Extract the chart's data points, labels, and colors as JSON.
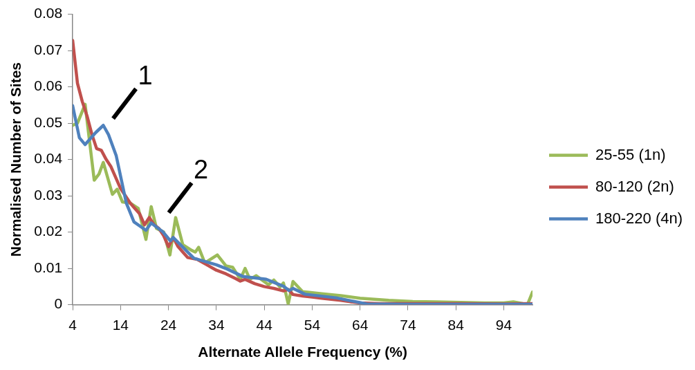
{
  "chart_data": {
    "type": "line",
    "xlabel": "Alternate Allele Frequency (%)",
    "ylabel": "Normalised Number of Sites",
    "xlim": [
      4,
      100
    ],
    "xticks": [
      4,
      14,
      24,
      34,
      44,
      54,
      64,
      74,
      84,
      94
    ],
    "ylim": [
      0,
      0.08
    ],
    "yticks": [
      0,
      0.01,
      0.02,
      0.03,
      0.04,
      0.05,
      0.06,
      0.07,
      0.08
    ],
    "grid": false,
    "legend": "right",
    "marker": "none",
    "line_style": "solid",
    "annotations": [
      "1",
      "2"
    ],
    "series": [
      {
        "name": "25-55 (1n)",
        "color": "#9bbb59",
        "x": [
          4,
          5,
          6.6,
          8.5,
          9.5,
          10.4,
          12.3,
          13.3,
          14.4,
          16,
          17.7,
          19.3,
          20.4,
          21.5,
          23,
          24.3,
          25.5,
          27,
          28.8,
          29.6,
          30.3,
          31.6,
          34.2,
          36,
          37.4,
          39,
          40,
          41,
          42.3,
          44.9,
          46,
          47.3,
          48,
          49,
          50,
          52,
          53.4,
          56,
          60,
          64,
          70,
          75,
          80,
          90,
          94,
          96,
          98,
          99,
          100
        ],
        "values": [
          0.0494,
          0.05,
          0.0552,
          0.0343,
          0.036,
          0.0392,
          0.0304,
          0.0318,
          0.0283,
          0.028,
          0.0265,
          0.018,
          0.027,
          0.021,
          0.02,
          0.0137,
          0.024,
          0.0165,
          0.015,
          0.0145,
          0.0158,
          0.0115,
          0.0137,
          0.0107,
          0.0103,
          0.007,
          0.01,
          0.007,
          0.008,
          0.0055,
          0.0068,
          0.0049,
          0.006,
          0.0002,
          0.0064,
          0.0036,
          0.0034,
          0.003,
          0.0025,
          0.0018,
          0.0012,
          0.0009,
          0.0008,
          0.0005,
          0.0005,
          0.0008,
          0.0003,
          0.0002,
          0.0035
        ]
      },
      {
        "name": "80-120 (2n)",
        "color": "#c0504d",
        "x": [
          4,
          5,
          6,
          7,
          8,
          9,
          10,
          11,
          12,
          13,
          14,
          15,
          16,
          17,
          18,
          19,
          20,
          21,
          22,
          23,
          24,
          25,
          26,
          27,
          28,
          30,
          32,
          34,
          36,
          38,
          39,
          40,
          42,
          44,
          46,
          48,
          49,
          50,
          52,
          54,
          56,
          58,
          60,
          62,
          64,
          68,
          74,
          84,
          94,
          100
        ],
        "values": [
          0.0728,
          0.061,
          0.056,
          0.052,
          0.047,
          0.043,
          0.0425,
          0.04,
          0.038,
          0.035,
          0.032,
          0.03,
          0.028,
          0.0265,
          0.025,
          0.022,
          0.024,
          0.022,
          0.021,
          0.019,
          0.016,
          0.0185,
          0.016,
          0.0145,
          0.013,
          0.0125,
          0.011,
          0.0095,
          0.0085,
          0.0072,
          0.0065,
          0.007,
          0.0058,
          0.005,
          0.0045,
          0.0038,
          0.0042,
          0.0028,
          0.0024,
          0.0021,
          0.0018,
          0.0015,
          0.0012,
          0.0008,
          0.0005,
          0.0003,
          0.0003,
          0.0003,
          0.0002,
          0.0003
        ]
      },
      {
        "name": "180-220 (4n)",
        "color": "#4f81bd",
        "x": [
          4,
          5.4,
          6.6,
          8.8,
          10.4,
          11.5,
          13.1,
          15.2,
          16.8,
          19.3,
          20.4,
          22.8,
          24.4,
          25,
          29.3,
          34,
          36.3,
          39.5,
          44.4,
          48,
          49.2,
          50,
          52.5,
          59,
          65.4,
          74,
          84,
          94,
          100
        ],
        "values": [
          0.0548,
          0.046,
          0.0441,
          0.0474,
          0.0494,
          0.0468,
          0.041,
          0.028,
          0.0228,
          0.0205,
          0.0225,
          0.0201,
          0.0176,
          0.0185,
          0.0128,
          0.011,
          0.0098,
          0.0078,
          0.007,
          0.0051,
          0.0039,
          0.0045,
          0.0029,
          0.0019,
          0.0002,
          0.0001,
          0.0001,
          0.0001,
          0.0001
        ]
      }
    ]
  }
}
